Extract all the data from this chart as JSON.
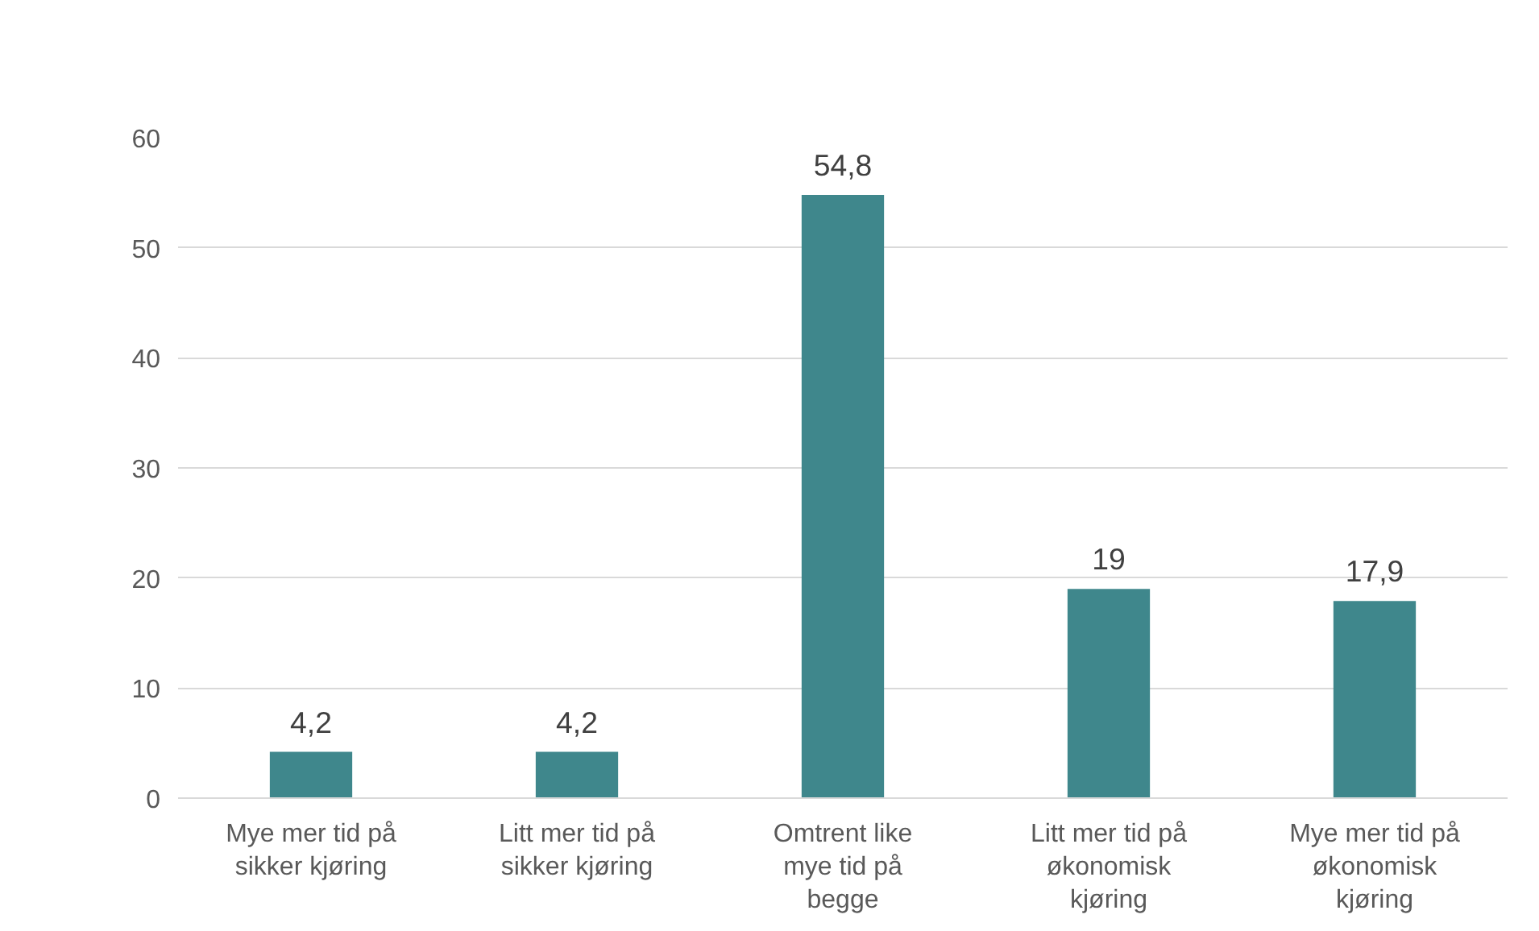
{
  "chart_data": {
    "type": "bar",
    "categories": [
      "Mye mer tid på sikker kjøring",
      "Litt mer tid på sikker kjøring",
      "Omtrent like mye tid på begge",
      "Litt mer tid på økonomisk kjøring",
      "Mye mer tid på økonomisk kjøring"
    ],
    "values": [
      4.2,
      4.2,
      54.8,
      19,
      17.9
    ],
    "value_labels": [
      "4,2",
      "4,2",
      "54,8",
      "19",
      "17,9"
    ],
    "color": "#3f878c",
    "ylim": [
      0,
      60
    ],
    "yticks": [
      0,
      10,
      20,
      30,
      40,
      50,
      60
    ],
    "grid": "y"
  }
}
